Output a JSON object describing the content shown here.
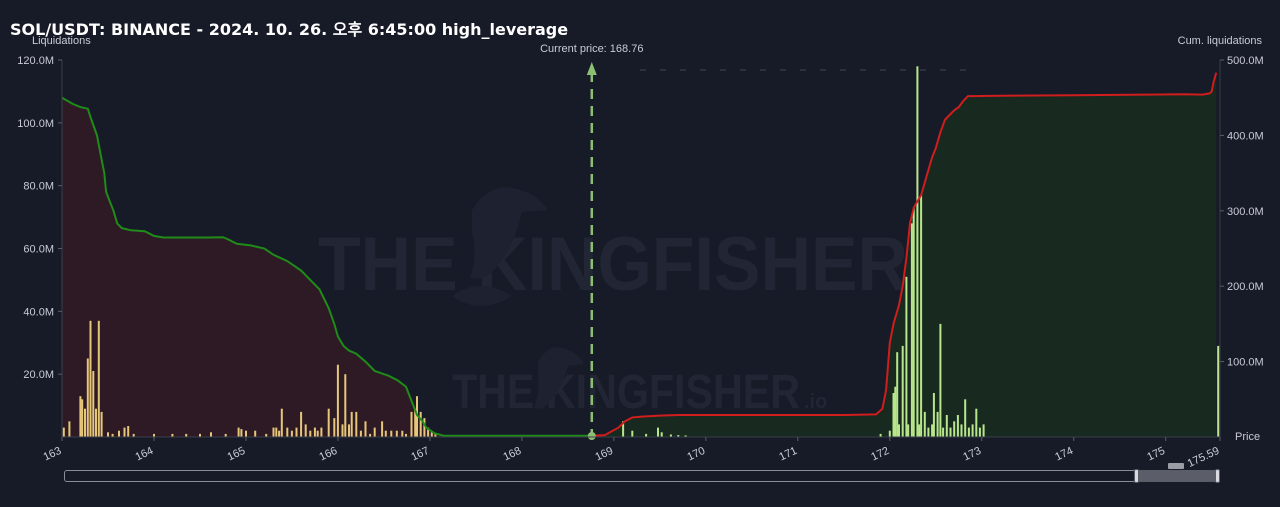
{
  "chart_data": {
    "type": "bar+line",
    "title": "SOL/USDT: BINANCE - 2024. 10. 26. 오후 6:45:00 high_leverage",
    "y_left_label": "Liquidations",
    "y_right_label": "Cum. liquidations",
    "x_label": "Price",
    "x_range": [
      163,
      175.59
    ],
    "x_ticks": [
      "163",
      "164",
      "165",
      "166",
      "167",
      "168",
      "169",
      "170",
      "171",
      "172",
      "173",
      "174",
      "175",
      "175.59"
    ],
    "y_left_range": [
      0,
      120000000
    ],
    "y_left_ticks": [
      "20.0M",
      "40.0M",
      "60.0M",
      "80.0M",
      "100.0M",
      "120.0M"
    ],
    "y_right_range": [
      0,
      500000000
    ],
    "y_right_ticks": [
      "100.0M",
      "200.0M",
      "300.0M",
      "400.0M",
      "500.0M"
    ],
    "current_price": 168.76,
    "current_price_label": "Current price: 168.76",
    "watermark": "THE KINGFISHER",
    "watermark_suffix": ".io",
    "colors": {
      "short_side": "#d01d1d",
      "long_side": "#1f8c19",
      "short_fill": "#2e1a24",
      "long_fill": "#18291f",
      "bar_left": "#e6c77a",
      "bar_right": "#b8e68c",
      "current_price": "#8dbf72"
    },
    "cum_long_curve": [
      [
        163.0,
        108
      ],
      [
        163.12,
        106
      ],
      [
        163.2,
        105
      ],
      [
        163.28,
        104.5
      ],
      [
        163.32,
        101
      ],
      [
        163.38,
        96
      ],
      [
        163.42,
        90
      ],
      [
        163.46,
        84
      ],
      [
        163.48,
        78
      ],
      [
        163.52,
        75
      ],
      [
        163.56,
        72
      ],
      [
        163.6,
        68
      ],
      [
        163.65,
        66.5
      ],
      [
        163.75,
        65.8
      ],
      [
        163.9,
        65.5
      ],
      [
        164.0,
        64
      ],
      [
        164.1,
        63.5
      ],
      [
        164.3,
        63.5
      ],
      [
        164.6,
        63.5
      ],
      [
        164.75,
        63.6
      ],
      [
        164.8,
        63
      ],
      [
        164.9,
        61.5
      ],
      [
        165.05,
        61
      ],
      [
        165.2,
        60
      ],
      [
        165.3,
        58
      ],
      [
        165.45,
        56
      ],
      [
        165.6,
        53
      ],
      [
        165.7,
        50
      ],
      [
        165.8,
        47
      ],
      [
        165.9,
        41
      ],
      [
        165.96,
        36
      ],
      [
        166.0,
        32
      ],
      [
        166.06,
        29
      ],
      [
        166.12,
        27.5
      ],
      [
        166.2,
        26.5
      ],
      [
        166.3,
        24
      ],
      [
        166.4,
        21
      ],
      [
        166.55,
        19.5
      ],
      [
        166.65,
        18
      ],
      [
        166.74,
        16
      ],
      [
        166.78,
        13
      ],
      [
        166.82,
        10
      ],
      [
        166.86,
        7
      ],
      [
        166.92,
        5
      ],
      [
        166.96,
        3
      ],
      [
        167.05,
        1.2
      ],
      [
        167.15,
        0.4
      ],
      [
        168.76,
        0.4
      ]
    ],
    "cum_short_curve": [
      [
        168.76,
        0.4
      ],
      [
        168.9,
        0.6
      ],
      [
        169.05,
        3
      ],
      [
        169.12,
        5
      ],
      [
        169.2,
        6.2
      ],
      [
        169.3,
        6.5
      ],
      [
        169.5,
        6.8
      ],
      [
        169.7,
        7
      ],
      [
        170.5,
        7
      ],
      [
        171.5,
        7
      ],
      [
        171.85,
        7.2
      ],
      [
        171.92,
        9
      ],
      [
        171.96,
        15
      ],
      [
        172.0,
        30
      ],
      [
        172.04,
        36
      ],
      [
        172.06,
        38
      ],
      [
        172.1,
        42
      ],
      [
        172.14,
        48
      ],
      [
        172.18,
        57
      ],
      [
        172.22,
        68
      ],
      [
        172.26,
        73
      ],
      [
        172.3,
        75
      ],
      [
        172.34,
        77
      ],
      [
        172.38,
        81
      ],
      [
        172.42,
        85
      ],
      [
        172.46,
        89
      ],
      [
        172.5,
        92
      ],
      [
        172.55,
        97
      ],
      [
        172.6,
        101
      ],
      [
        172.65,
        102.5
      ],
      [
        172.7,
        104
      ],
      [
        172.75,
        105
      ],
      [
        172.8,
        107
      ],
      [
        172.85,
        108.5
      ],
      [
        172.9,
        108.5
      ],
      [
        173.2,
        108.6
      ],
      [
        174.0,
        108.8
      ],
      [
        174.8,
        109
      ],
      [
        175.2,
        109.1
      ],
      [
        175.4,
        109
      ],
      [
        175.48,
        109.4
      ],
      [
        175.5,
        110
      ],
      [
        175.52,
        113
      ],
      [
        175.55,
        116
      ]
    ],
    "bars_left": [
      [
        163.02,
        3
      ],
      [
        163.08,
        5
      ],
      [
        163.2,
        13
      ],
      [
        163.22,
        12
      ],
      [
        163.25,
        9
      ],
      [
        163.28,
        25
      ],
      [
        163.31,
        37
      ],
      [
        163.34,
        21
      ],
      [
        163.37,
        9
      ],
      [
        163.4,
        37
      ],
      [
        163.43,
        8
      ],
      [
        163.5,
        1.5
      ],
      [
        163.55,
        1
      ],
      [
        163.62,
        2
      ],
      [
        163.68,
        3
      ],
      [
        163.72,
        3.5
      ],
      [
        163.78,
        1
      ],
      [
        164.0,
        1
      ],
      [
        164.2,
        1
      ],
      [
        164.35,
        1
      ],
      [
        164.5,
        1
      ],
      [
        164.62,
        1.5
      ],
      [
        164.78,
        1
      ],
      [
        164.92,
        3
      ],
      [
        164.95,
        2.5
      ],
      [
        165.0,
        2
      ],
      [
        165.1,
        2
      ],
      [
        165.22,
        1
      ],
      [
        165.3,
        3
      ],
      [
        165.33,
        3
      ],
      [
        165.36,
        2
      ],
      [
        165.39,
        9
      ],
      [
        165.45,
        3
      ],
      [
        165.5,
        2
      ],
      [
        165.55,
        3
      ],
      [
        165.6,
        8
      ],
      [
        165.65,
        4
      ],
      [
        165.7,
        2
      ],
      [
        165.75,
        3
      ],
      [
        165.78,
        2
      ],
      [
        165.82,
        3
      ],
      [
        165.9,
        9
      ],
      [
        165.96,
        6
      ],
      [
        166.0,
        23
      ],
      [
        166.05,
        4
      ],
      [
        166.08,
        20
      ],
      [
        166.12,
        4
      ],
      [
        166.15,
        8
      ],
      [
        166.2,
        8
      ],
      [
        166.25,
        2
      ],
      [
        166.3,
        5
      ],
      [
        166.35,
        1
      ],
      [
        166.4,
        3
      ],
      [
        166.48,
        5
      ],
      [
        166.52,
        2
      ],
      [
        166.58,
        2
      ],
      [
        166.64,
        2
      ],
      [
        166.7,
        2
      ],
      [
        166.74,
        1
      ],
      [
        166.8,
        8
      ],
      [
        166.84,
        9
      ],
      [
        166.86,
        13
      ],
      [
        166.9,
        8
      ],
      [
        166.94,
        6
      ],
      [
        166.98,
        3
      ],
      [
        167.02,
        1.5
      ],
      [
        167.06,
        1
      ]
    ],
    "bars_right": [
      [
        169.1,
        5
      ],
      [
        169.2,
        2
      ],
      [
        169.35,
        1
      ],
      [
        169.48,
        3
      ],
      [
        169.52,
        1.5
      ],
      [
        169.62,
        0.8
      ],
      [
        169.7,
        0.6
      ],
      [
        169.78,
        0.5
      ],
      [
        171.9,
        1
      ],
      [
        172.0,
        2
      ],
      [
        172.04,
        14
      ],
      [
        172.06,
        16
      ],
      [
        172.08,
        27
      ],
      [
        172.1,
        4
      ],
      [
        172.14,
        29
      ],
      [
        172.18,
        51
      ],
      [
        172.2,
        4
      ],
      [
        172.24,
        68
      ],
      [
        172.26,
        73
      ],
      [
        172.3,
        118
      ],
      [
        172.32,
        4
      ],
      [
        172.34,
        77
      ],
      [
        172.38,
        8
      ],
      [
        172.42,
        3
      ],
      [
        172.46,
        4
      ],
      [
        172.48,
        14
      ],
      [
        172.52,
        8
      ],
      [
        172.55,
        36
      ],
      [
        172.58,
        3
      ],
      [
        172.62,
        7
      ],
      [
        172.66,
        3
      ],
      [
        172.7,
        5
      ],
      [
        172.74,
        7
      ],
      [
        172.78,
        4
      ],
      [
        172.82,
        12
      ],
      [
        172.86,
        3
      ],
      [
        172.9,
        4
      ],
      [
        172.94,
        9
      ],
      [
        172.98,
        3
      ],
      [
        173.02,
        4
      ],
      [
        175.57,
        29
      ]
    ]
  }
}
